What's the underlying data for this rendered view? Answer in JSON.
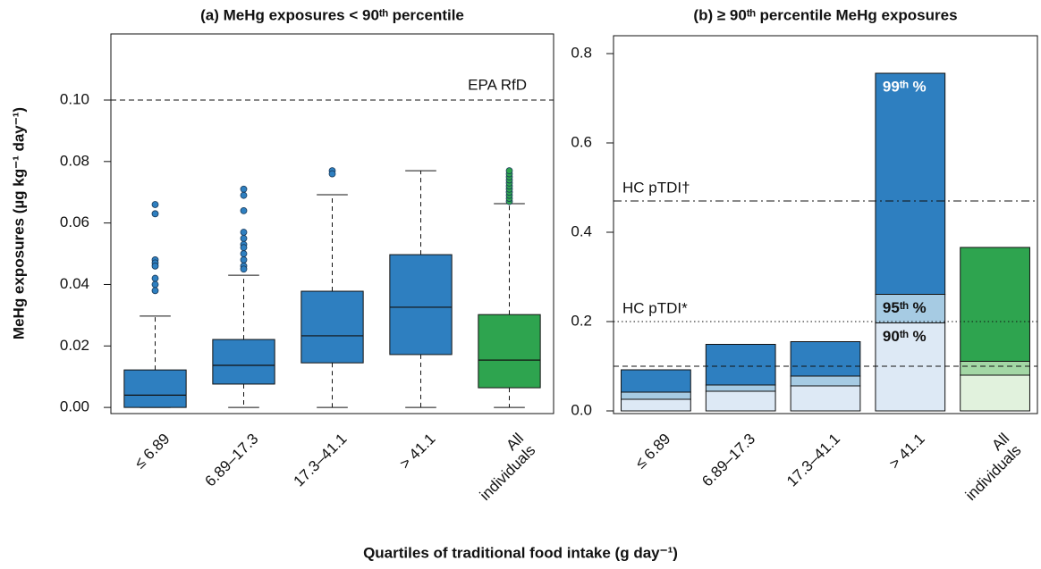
{
  "x_label": "Quartiles of traditional food intake (g day⁻¹)",
  "chart_data": [
    {
      "type": "box",
      "title": "(a) MeHg exposures < 90ᵗʰ percentile",
      "y_label": "MeHg exposures (µg kg⁻¹ day⁻¹)",
      "categories": [
        "≤ 6.89",
        "6.89–17.3",
        "17.3–41.1",
        "> 41.1",
        "All\nindividuals"
      ],
      "colors": [
        "#2e7fc0",
        "#2e7fc0",
        "#2e7fc0",
        "#2e7fc0",
        "#2ea44f"
      ],
      "boxes": [
        {
          "whisker_low": 0,
          "q1": 0,
          "median": 0.004,
          "q3": 0.0122,
          "whisker_high": 0.0297,
          "outliers": [
            0.066,
            0.063,
            0.048,
            0.047,
            0.046,
            0.042,
            0.04,
            0.038
          ]
        },
        {
          "whisker_low": 0,
          "q1": 0.0076,
          "median": 0.0137,
          "q3": 0.0221,
          "whisker_high": 0.043,
          "outliers": [
            0.071,
            0.069,
            0.064,
            0.057,
            0.055,
            0.053,
            0.052,
            0.05,
            0.048,
            0.046,
            0.045
          ]
        },
        {
          "whisker_low": 0,
          "q1": 0.0145,
          "median": 0.0233,
          "q3": 0.0378,
          "whisker_high": 0.0692,
          "outliers": [
            0.077,
            0.076
          ]
        },
        {
          "whisker_low": 0,
          "q1": 0.0172,
          "median": 0.0326,
          "q3": 0.0497,
          "whisker_high": 0.077,
          "outliers": []
        },
        {
          "whisker_low": 0,
          "q1": 0.0064,
          "median": 0.0154,
          "q3": 0.0302,
          "whisker_high": 0.0663,
          "outliers": [
            0.067,
            0.068,
            0.069,
            0.07,
            0.071,
            0.072,
            0.073,
            0.074,
            0.075,
            0.076,
            0.077
          ]
        }
      ],
      "ylim": [
        -0.002,
        0.1215
      ],
      "yticks": [
        {
          "value": 0,
          "label": "0.00"
        },
        {
          "value": 0.02,
          "label": "0.02"
        },
        {
          "value": 0.04,
          "label": "0.04"
        },
        {
          "value": 0.06,
          "label": "0.06"
        },
        {
          "value": 0.08,
          "label": "0.08"
        },
        {
          "value": 0.1,
          "label": "0.10"
        }
      ],
      "reference_lines": [
        {
          "value": 0.1,
          "label": "EPA RfD",
          "style": "dashed"
        }
      ]
    },
    {
      "type": "stacked_bar",
      "title": "(b) ≥ 90ᵗʰ percentile MeHg exposures",
      "categories": [
        "≤ 6.89",
        "6.89–17.3",
        "17.3–41.1",
        "> 41.1",
        "All\nindividuals"
      ],
      "series": [
        {
          "name": "90ᵗʰ %",
          "colors": [
            "#dde9f5",
            "#dde9f5",
            "#dde9f5",
            "#dde9f5",
            "#e1f2dd"
          ],
          "values": [
            0.026,
            0.044,
            0.056,
            0.197,
            0.08
          ]
        },
        {
          "name": "95ᵗʰ %",
          "colors": [
            "#a6cbe3",
            "#a6cbe3",
            "#a6cbe3",
            "#a6cbe3",
            "#a3d7a5"
          ],
          "values": [
            0.016,
            0.014,
            0.022,
            0.064,
            0.031
          ]
        },
        {
          "name": "99ᵗʰ %",
          "colors": [
            "#2e7fc0",
            "#2e7fc0",
            "#2e7fc0",
            "#2e7fc0",
            "#2ea44f"
          ],
          "values": [
            0.05,
            0.091,
            0.077,
            0.495,
            0.255
          ]
        }
      ],
      "ylim": [
        -0.006,
        0.84
      ],
      "yticks": [
        {
          "value": 0,
          "label": "0.0"
        },
        0.2,
        0.4,
        0.6,
        0.8
      ],
      "reference_lines": [
        {
          "value": 0.1,
          "style": "dashed"
        },
        {
          "value": 0.2,
          "label": "HC pTDI*",
          "style": "dotted"
        },
        {
          "value": 0.47,
          "label": "HC pTDI†",
          "style": "dashdot"
        }
      ]
    }
  ]
}
